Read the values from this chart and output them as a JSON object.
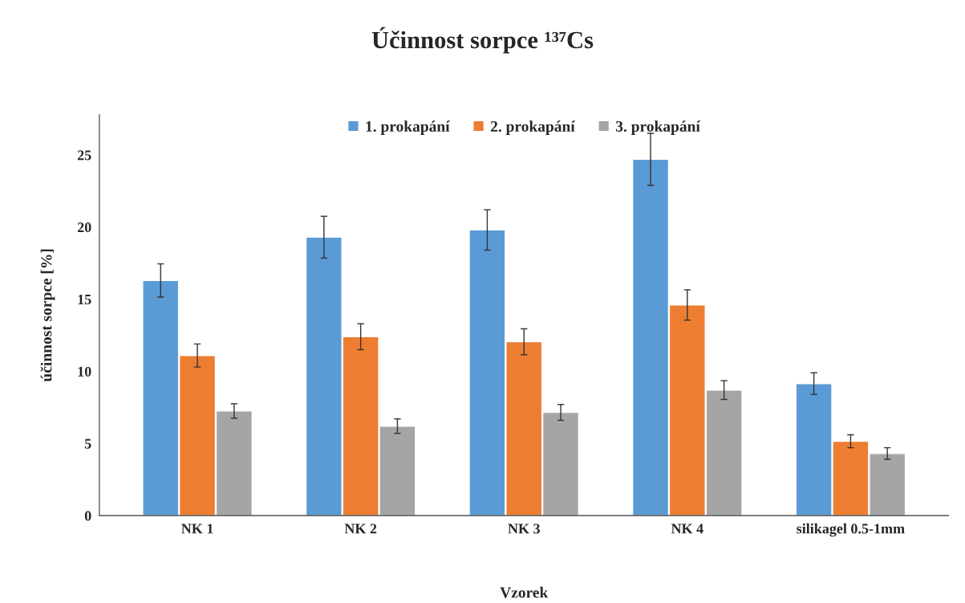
{
  "chart_data": {
    "type": "bar",
    "title": "Účinnost sorpce ¹³⁷Cs",
    "xlabel": "Vzorek",
    "ylabel": "účinnost sorpce [%]",
    "categories": [
      "NK 1",
      "NK 2",
      "NK 3",
      "NK 4",
      "silikagel 0.5-1mm"
    ],
    "series": [
      {
        "name": "1. prokapání",
        "color": "#5b9bd5",
        "values": [
          16.3,
          19.3,
          19.8,
          24.7,
          9.15
        ],
        "errors": [
          1.15,
          1.45,
          1.4,
          1.8,
          0.75
        ]
      },
      {
        "name": "2. prokapání",
        "color": "#ed7d31",
        "values": [
          11.1,
          12.4,
          12.05,
          14.6,
          5.15
        ],
        "errors": [
          0.8,
          0.9,
          0.9,
          1.05,
          0.45
        ]
      },
      {
        "name": "3. prokapání",
        "color": "#a5a5a5",
        "values": [
          7.25,
          6.2,
          7.15,
          8.7,
          4.3
        ],
        "errors": [
          0.5,
          0.5,
          0.55,
          0.65,
          0.4
        ]
      }
    ],
    "ylim": [
      0,
      27.8
    ],
    "yticks": [
      0,
      5,
      10,
      15,
      20,
      25
    ],
    "grid": false,
    "legend": "top"
  }
}
